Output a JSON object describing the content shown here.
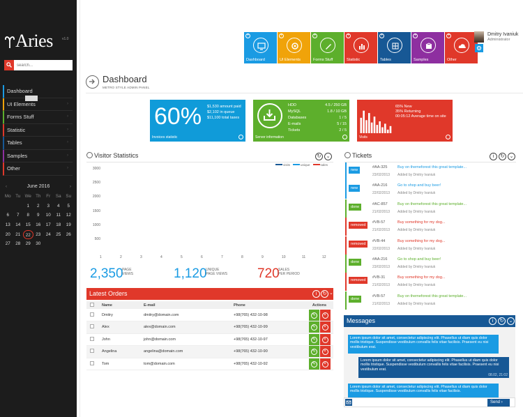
{
  "sidebar": {
    "logo": "Aries",
    "version": "v1.0",
    "search_placeholder": "search...",
    "tooltip": "",
    "items": [
      {
        "label": "Dashboard",
        "color": "#1a9be3"
      },
      {
        "label": "UI Elements",
        "color": "#f0a30a"
      },
      {
        "label": "Forms Stuff",
        "color": "#5daf2c"
      },
      {
        "label": "Statistic",
        "color": "#e0382a"
      },
      {
        "label": "Tables",
        "color": "#175895"
      },
      {
        "label": "Samples",
        "color": "#8e2fa0"
      },
      {
        "label": "Other",
        "color": "#e0382a"
      }
    ],
    "calendar": {
      "month": "June 2016",
      "dow": [
        "Mo",
        "Tu",
        "We",
        "Th",
        "Fr",
        "Sa",
        "Su"
      ],
      "days": [
        "",
        "",
        "1",
        "2",
        "3",
        "4",
        "5",
        "6",
        "7",
        "8",
        "9",
        "10",
        "11",
        "12",
        "13",
        "14",
        "15",
        "16",
        "17",
        "18",
        "19",
        "20",
        "21",
        "22",
        "23",
        "24",
        "25",
        "26",
        "27",
        "28",
        "29",
        "30",
        "",
        "",
        ""
      ],
      "today": "22"
    }
  },
  "tiles": [
    {
      "label": "Dashboard",
      "color": "#1a9be3",
      "icon": "monitor-icon"
    },
    {
      "label": "UI Elements",
      "color": "#f0a30a",
      "icon": "gear-icon"
    },
    {
      "label": "Forms Stuff",
      "color": "#5daf2c",
      "icon": "pencil-icon"
    },
    {
      "label": "Statistic",
      "color": "#e0382a",
      "icon": "bar-chart-icon"
    },
    {
      "label": "Tables",
      "color": "#175895",
      "icon": "grid-icon"
    },
    {
      "label": "Samples",
      "color": "#8e2fa0",
      "icon": "box-icon"
    },
    {
      "label": "Other",
      "color": "#e0382a",
      "icon": "cloud-icon"
    }
  ],
  "user": {
    "name": "Dmitry Ivaniuk",
    "role": "Administrator"
  },
  "page": {
    "title": "Dashboard",
    "subtitle": "METRO STYLE ADMIN PANEL"
  },
  "stats": {
    "blue": {
      "big": "60%",
      "lines": [
        "$1,530 amount paid",
        "$2,102 in queue",
        "$11,100 total taxes"
      ],
      "footer": "Invoices statistic"
    },
    "green": {
      "rows": [
        {
          "k": "HDD",
          "v": "4.5 / 250 GB"
        },
        {
          "k": "MySQL",
          "v": "1.8 / 10 GB"
        },
        {
          "k": "Databases",
          "v": "1 / 5"
        },
        {
          "k": "E-mails",
          "v": "5 / 15"
        },
        {
          "k": "Tickets",
          "v": "2 / 5"
        }
      ],
      "footer": "Server information"
    },
    "red": {
      "lines": [
        "65% New",
        "35% Returning",
        "00:05:12 Average time on site"
      ],
      "footer": "Visits",
      "bars": [
        0.65,
        0.95,
        0.55,
        0.85,
        0.45,
        0.7,
        0.35,
        0.5,
        0.25,
        0.4,
        0.15,
        0.3
      ]
    }
  },
  "visitors": {
    "title": "Visitor Statistics",
    "legend": [
      "visits",
      "unique",
      "sales"
    ],
    "legend_colors": [
      "#175895",
      "#1a9be3",
      "#e0382a"
    ],
    "y_ticks": [
      "3000",
      "2500",
      "2000",
      "1500",
      "1000",
      "500"
    ],
    "x_ticks": [
      "1",
      "2",
      "3",
      "4",
      "5",
      "6",
      "7",
      "8",
      "9",
      "10",
      "11",
      "12"
    ],
    "summary": [
      {
        "value": "2,350",
        "label1": "PAGE",
        "label2": "VIEWS",
        "color": "#1a9be3"
      },
      {
        "value": "1,120",
        "label1": "UNIQUE",
        "label2": "PAGE VIEWS",
        "color": "#1a9be3"
      },
      {
        "value": "720",
        "label1": "SALES",
        "label2": "PER PERIOD",
        "color": "#e0382a"
      }
    ]
  },
  "orders": {
    "title": "Latest Orders",
    "columns": [
      "Name",
      "E-mail",
      "Phone",
      "Actions"
    ],
    "rows": [
      {
        "name": "Dmitry",
        "email": "dmitry@domain.com",
        "phone": "+98(765) 432-10-98"
      },
      {
        "name": "Alex",
        "email": "alex@domain.com",
        "phone": "+98(765) 432-10-99"
      },
      {
        "name": "John",
        "email": "john@domain.com",
        "phone": "+98(765) 432-10-97"
      },
      {
        "name": "Angelina",
        "email": "angelina@domain.com",
        "phone": "+98(765) 432-10-90"
      },
      {
        "name": "Tom",
        "email": "tom@domain.com",
        "phone": "+98(765) 432-10-92"
      }
    ]
  },
  "tickets": {
    "title": "Tickets",
    "items": [
      {
        "status": "new",
        "id": "#AA-325",
        "date": "23/02/2013",
        "title": "Buy on themeforest this great template...",
        "by": "Added by Dmitry Ivaniuk",
        "color": "#1a9be3"
      },
      {
        "status": "new",
        "id": "#AA-216",
        "date": "22/02/2013",
        "title": "Go to shop and buy beer!",
        "by": "Added by Dmitry Ivaniuk",
        "color": "#1a9be3"
      },
      {
        "status": "done",
        "id": "#AC-857",
        "date": "21/02/2013",
        "title": "Buy on themeforest this great template...",
        "by": "Added by Dmitry Ivaniuk",
        "color": "#5daf2c"
      },
      {
        "status": "removed",
        "id": "#VB-57",
        "date": "21/02/2013",
        "title": "Buy something for my dog...",
        "by": "Added by Dmitry Ivaniuk",
        "color": "#e0382a"
      },
      {
        "status": "removed",
        "id": "#VB-44",
        "date": "22/02/2013",
        "title": "Buy something for my dog...",
        "by": "Added by Dmitry Ivaniuk",
        "color": "#e0382a"
      },
      {
        "status": "done",
        "id": "#AA-216",
        "date": "23/02/2013",
        "title": "Go to shop and buy beer!",
        "by": "Added by Dmitry Ivaniuk",
        "color": "#5daf2c"
      },
      {
        "status": "removed",
        "id": "#VB-31",
        "date": "21/02/2013",
        "title": "Buy something for my dog...",
        "by": "Added by Dmitry Ivaniuk",
        "color": "#e0382a"
      },
      {
        "status": "done",
        "id": "#VB-57",
        "date": "21/02/2013",
        "title": "Buy on themeforest this great template...",
        "by": "Added by Dmitry Ivaniuk",
        "color": "#5daf2c"
      }
    ]
  },
  "messages": {
    "title": "Messages",
    "bubbles": [
      {
        "text": "Lorem ipsum dolor sit amet, consectetur adipiscing elit. Phasellus ut diam quis dolor mollis tristique. Suspendisse vestibulum convallis felis vitae facilisis. Praesent eu nisi vestibulum erat.",
        "time": "",
        "color": "#1a9be3"
      },
      {
        "text": "Lorem ipsum dolor sit amet, consectetur adipiscing elit. Phasellus ut diam quis dolor mollis tristique. Suspendisse vestibulum convallis felis vitae facilisis. Praesent eu nisi vestibulum erat.",
        "time": "08.02, 21:02",
        "color": "#175895"
      },
      {
        "text": "Lorem ipsum dolor sit amet, consectetur adipiscing elit. Phasellus ut diam quis dolor mollis tristique. Suspendisse vestibulum convallis felis vitae facilisis.",
        "time": "",
        "color": "#1a9be3"
      }
    ],
    "input_placeholder": "",
    "send": "Send"
  }
}
